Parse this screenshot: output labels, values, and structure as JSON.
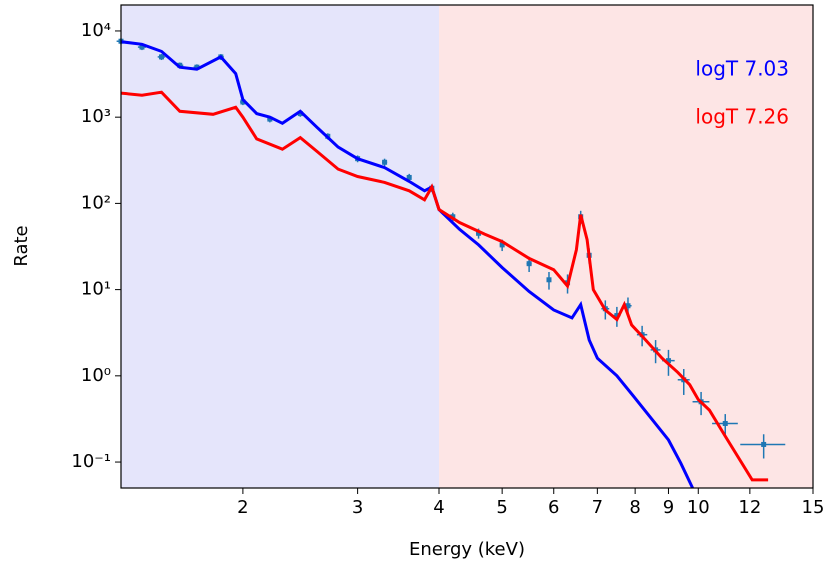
{
  "chart_data": {
    "type": "line",
    "xlabel": "Energy (keV)",
    "ylabel": "Rate",
    "xscale": "log",
    "yscale": "log",
    "xlim": [
      1.3,
      15
    ],
    "ylim": [
      0.05,
      20000
    ],
    "xticks": [
      2,
      3,
      4,
      5,
      6,
      7,
      8,
      9,
      10,
      12,
      15
    ],
    "yticks": [
      {
        "value": 0.1,
        "label": "10⁻¹"
      },
      {
        "value": 1,
        "label": "10⁰"
      },
      {
        "value": 10,
        "label": "10¹"
      },
      {
        "value": 100,
        "label": "10²"
      },
      {
        "value": 1000,
        "label": "10³"
      },
      {
        "value": 10000,
        "label": "10⁴"
      }
    ],
    "spans": [
      {
        "from": 1.3,
        "to": 4,
        "color": "#e2e2fb"
      },
      {
        "from": 4,
        "to": 15,
        "color": "#fde2e2"
      }
    ],
    "legend": "upper right",
    "data": {
      "color": "#1f77b4",
      "x": [
        1.3,
        1.4,
        1.5,
        1.6,
        1.7,
        1.85,
        2.0,
        2.2,
        2.45,
        2.7,
        3.0,
        3.3,
        3.6,
        3.9,
        4.2,
        4.6,
        5.0,
        5.5,
        5.9,
        6.3,
        6.6,
        6.8,
        7.2,
        7.5,
        7.8,
        8.2,
        8.6,
        9.0,
        9.5,
        10.1,
        11.0,
        12.6
      ],
      "values": [
        7600,
        6500,
        5000,
        4000,
        3800,
        5000,
        1500,
        950,
        1100,
        600,
        330,
        300,
        200,
        150,
        70,
        45,
        33,
        20,
        13,
        12,
        70,
        25,
        6,
        5,
        6.5,
        3,
        2,
        1.5,
        0.9,
        0.5,
        0.28,
        0.16
      ],
      "yerr": [
        600,
        500,
        400,
        300,
        300,
        400,
        120,
        80,
        90,
        50,
        30,
        30,
        20,
        15,
        8,
        6,
        5,
        4,
        3,
        3,
        12,
        5,
        1.5,
        1.3,
        1.6,
        0.8,
        0.6,
        0.5,
        0.3,
        0.15,
        0.08,
        0.05
      ],
      "xerr": [
        0.02,
        0.02,
        0.02,
        0.02,
        0.02,
        0.02,
        0.02,
        0.02,
        0.02,
        0.02,
        0.02,
        0.03,
        0.03,
        0.03,
        0.03,
        0.04,
        0.04,
        0.05,
        0.05,
        0.05,
        0.05,
        0.05,
        0.1,
        0.1,
        0.1,
        0.15,
        0.15,
        0.2,
        0.2,
        0.3,
        0.5,
        1.0
      ]
    },
    "series": [
      {
        "name": "logT 7.03",
        "color": "#0000ff",
        "x": [
          1.3,
          1.4,
          1.5,
          1.6,
          1.7,
          1.85,
          1.95,
          2.0,
          2.1,
          2.2,
          2.3,
          2.45,
          2.6,
          2.8,
          3.0,
          3.3,
          3.6,
          3.8,
          3.9,
          4.0,
          4.3,
          4.6,
          5.0,
          5.5,
          6.0,
          6.4,
          6.6,
          6.8,
          7.0,
          7.5,
          8.0,
          8.5,
          9.0,
          9.4,
          9.8
        ],
        "values": [
          7500,
          7000,
          5800,
          3800,
          3600,
          5000,
          3200,
          1600,
          1100,
          1000,
          850,
          1170,
          760,
          450,
          330,
          260,
          180,
          140,
          155,
          85,
          50,
          33,
          18,
          9.5,
          5.8,
          4.7,
          6.7,
          2.6,
          1.6,
          1.0,
          0.55,
          0.31,
          0.18,
          0.097,
          0.05
        ]
      },
      {
        "name": "logT 7.26",
        "color": "#ff0000",
        "x": [
          1.3,
          1.4,
          1.5,
          1.6,
          1.8,
          1.95,
          2.0,
          2.1,
          2.3,
          2.45,
          2.6,
          2.8,
          3.0,
          3.3,
          3.6,
          3.8,
          3.9,
          4.0,
          4.3,
          4.7,
          5.0,
          5.5,
          6.0,
          6.3,
          6.5,
          6.6,
          6.75,
          6.9,
          7.2,
          7.5,
          7.7,
          7.9,
          8.3,
          8.8,
          9.3,
          9.7,
          10.0,
          10.4,
          11.0,
          12.1,
          12.8
        ],
        "values": [
          1900,
          1800,
          1950,
          1170,
          1080,
          1300,
          1000,
          560,
          425,
          580,
          400,
          250,
          205,
          175,
          140,
          110,
          155,
          85,
          60,
          44,
          36,
          23,
          17,
          11,
          29,
          74,
          38,
          10,
          5.8,
          4.5,
          6.7,
          3.9,
          2.6,
          1.6,
          1.1,
          0.79,
          0.53,
          0.4,
          0.2,
          0.062,
          0.062
        ]
      }
    ]
  }
}
